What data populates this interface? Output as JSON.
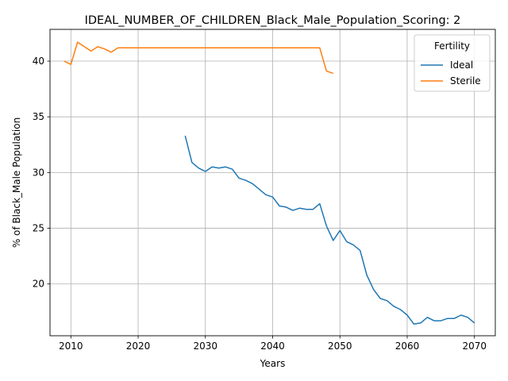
{
  "chart_data": {
    "type": "line",
    "title": "IDEAL_NUMBER_OF_CHILDREN_Black_Male_Population_Scoring: 2",
    "xlabel": "Years",
    "ylabel": "% of Black_Male Population",
    "xlim": [
      2006.9,
      2073.1
    ],
    "ylim": [
      15.35,
      42.85
    ],
    "xticks": [
      2010,
      2020,
      2030,
      2040,
      2050,
      2060,
      2070
    ],
    "yticks": [
      20,
      25,
      30,
      35,
      40
    ],
    "grid": true,
    "legend": {
      "title": "Fertility",
      "placement": "top-right"
    },
    "series": [
      {
        "name": "Ideal",
        "color": "#1f77b4",
        "x": [
          2027,
          2028,
          2029,
          2030,
          2031,
          2032,
          2033,
          2034,
          2035,
          2036,
          2037,
          2038,
          2039,
          2040,
          2041,
          2042,
          2043,
          2044,
          2045,
          2046,
          2047,
          2048,
          2049,
          2050,
          2051,
          2052,
          2053,
          2054,
          2055,
          2056,
          2057,
          2058,
          2059,
          2060,
          2061,
          2062,
          2063,
          2064,
          2065,
          2066,
          2067,
          2068,
          2069,
          2070
        ],
        "y": [
          33.3,
          30.9,
          30.4,
          30.1,
          30.5,
          30.4,
          30.5,
          30.3,
          29.5,
          29.3,
          29.0,
          28.5,
          28.0,
          27.8,
          27.0,
          26.9,
          26.6,
          26.8,
          26.7,
          26.7,
          27.2,
          25.2,
          23.9,
          24.8,
          23.8,
          23.5,
          23.0,
          20.8,
          19.5,
          18.7,
          18.5,
          18.0,
          17.7,
          17.2,
          16.4,
          16.5,
          17.0,
          16.7,
          16.7,
          16.9,
          16.9,
          17.2,
          17.0,
          16.5
        ]
      },
      {
        "name": "Sterile",
        "color": "#ff7f0e",
        "x": [
          2009,
          2010,
          2011,
          2012,
          2013,
          2014,
          2015,
          2016,
          2017,
          2018,
          2019,
          2020,
          2021,
          2022,
          2023,
          2024,
          2025,
          2026,
          2027,
          2028,
          2029,
          2030,
          2031,
          2032,
          2033,
          2034,
          2035,
          2036,
          2037,
          2038,
          2039,
          2040,
          2041,
          2042,
          2043,
          2044,
          2045,
          2046,
          2047,
          2048,
          2049
        ],
        "y": [
          40.0,
          39.7,
          41.7,
          41.3,
          40.9,
          41.3,
          41.1,
          40.8,
          41.2,
          41.2,
          41.2,
          41.2,
          41.2,
          41.2,
          41.2,
          41.2,
          41.2,
          41.2,
          41.2,
          41.2,
          41.2,
          41.2,
          41.2,
          41.2,
          41.2,
          41.2,
          41.2,
          41.2,
          41.2,
          41.2,
          41.2,
          41.2,
          41.2,
          41.2,
          41.2,
          41.2,
          41.2,
          41.2,
          41.2,
          39.1,
          38.9
        ]
      }
    ]
  }
}
